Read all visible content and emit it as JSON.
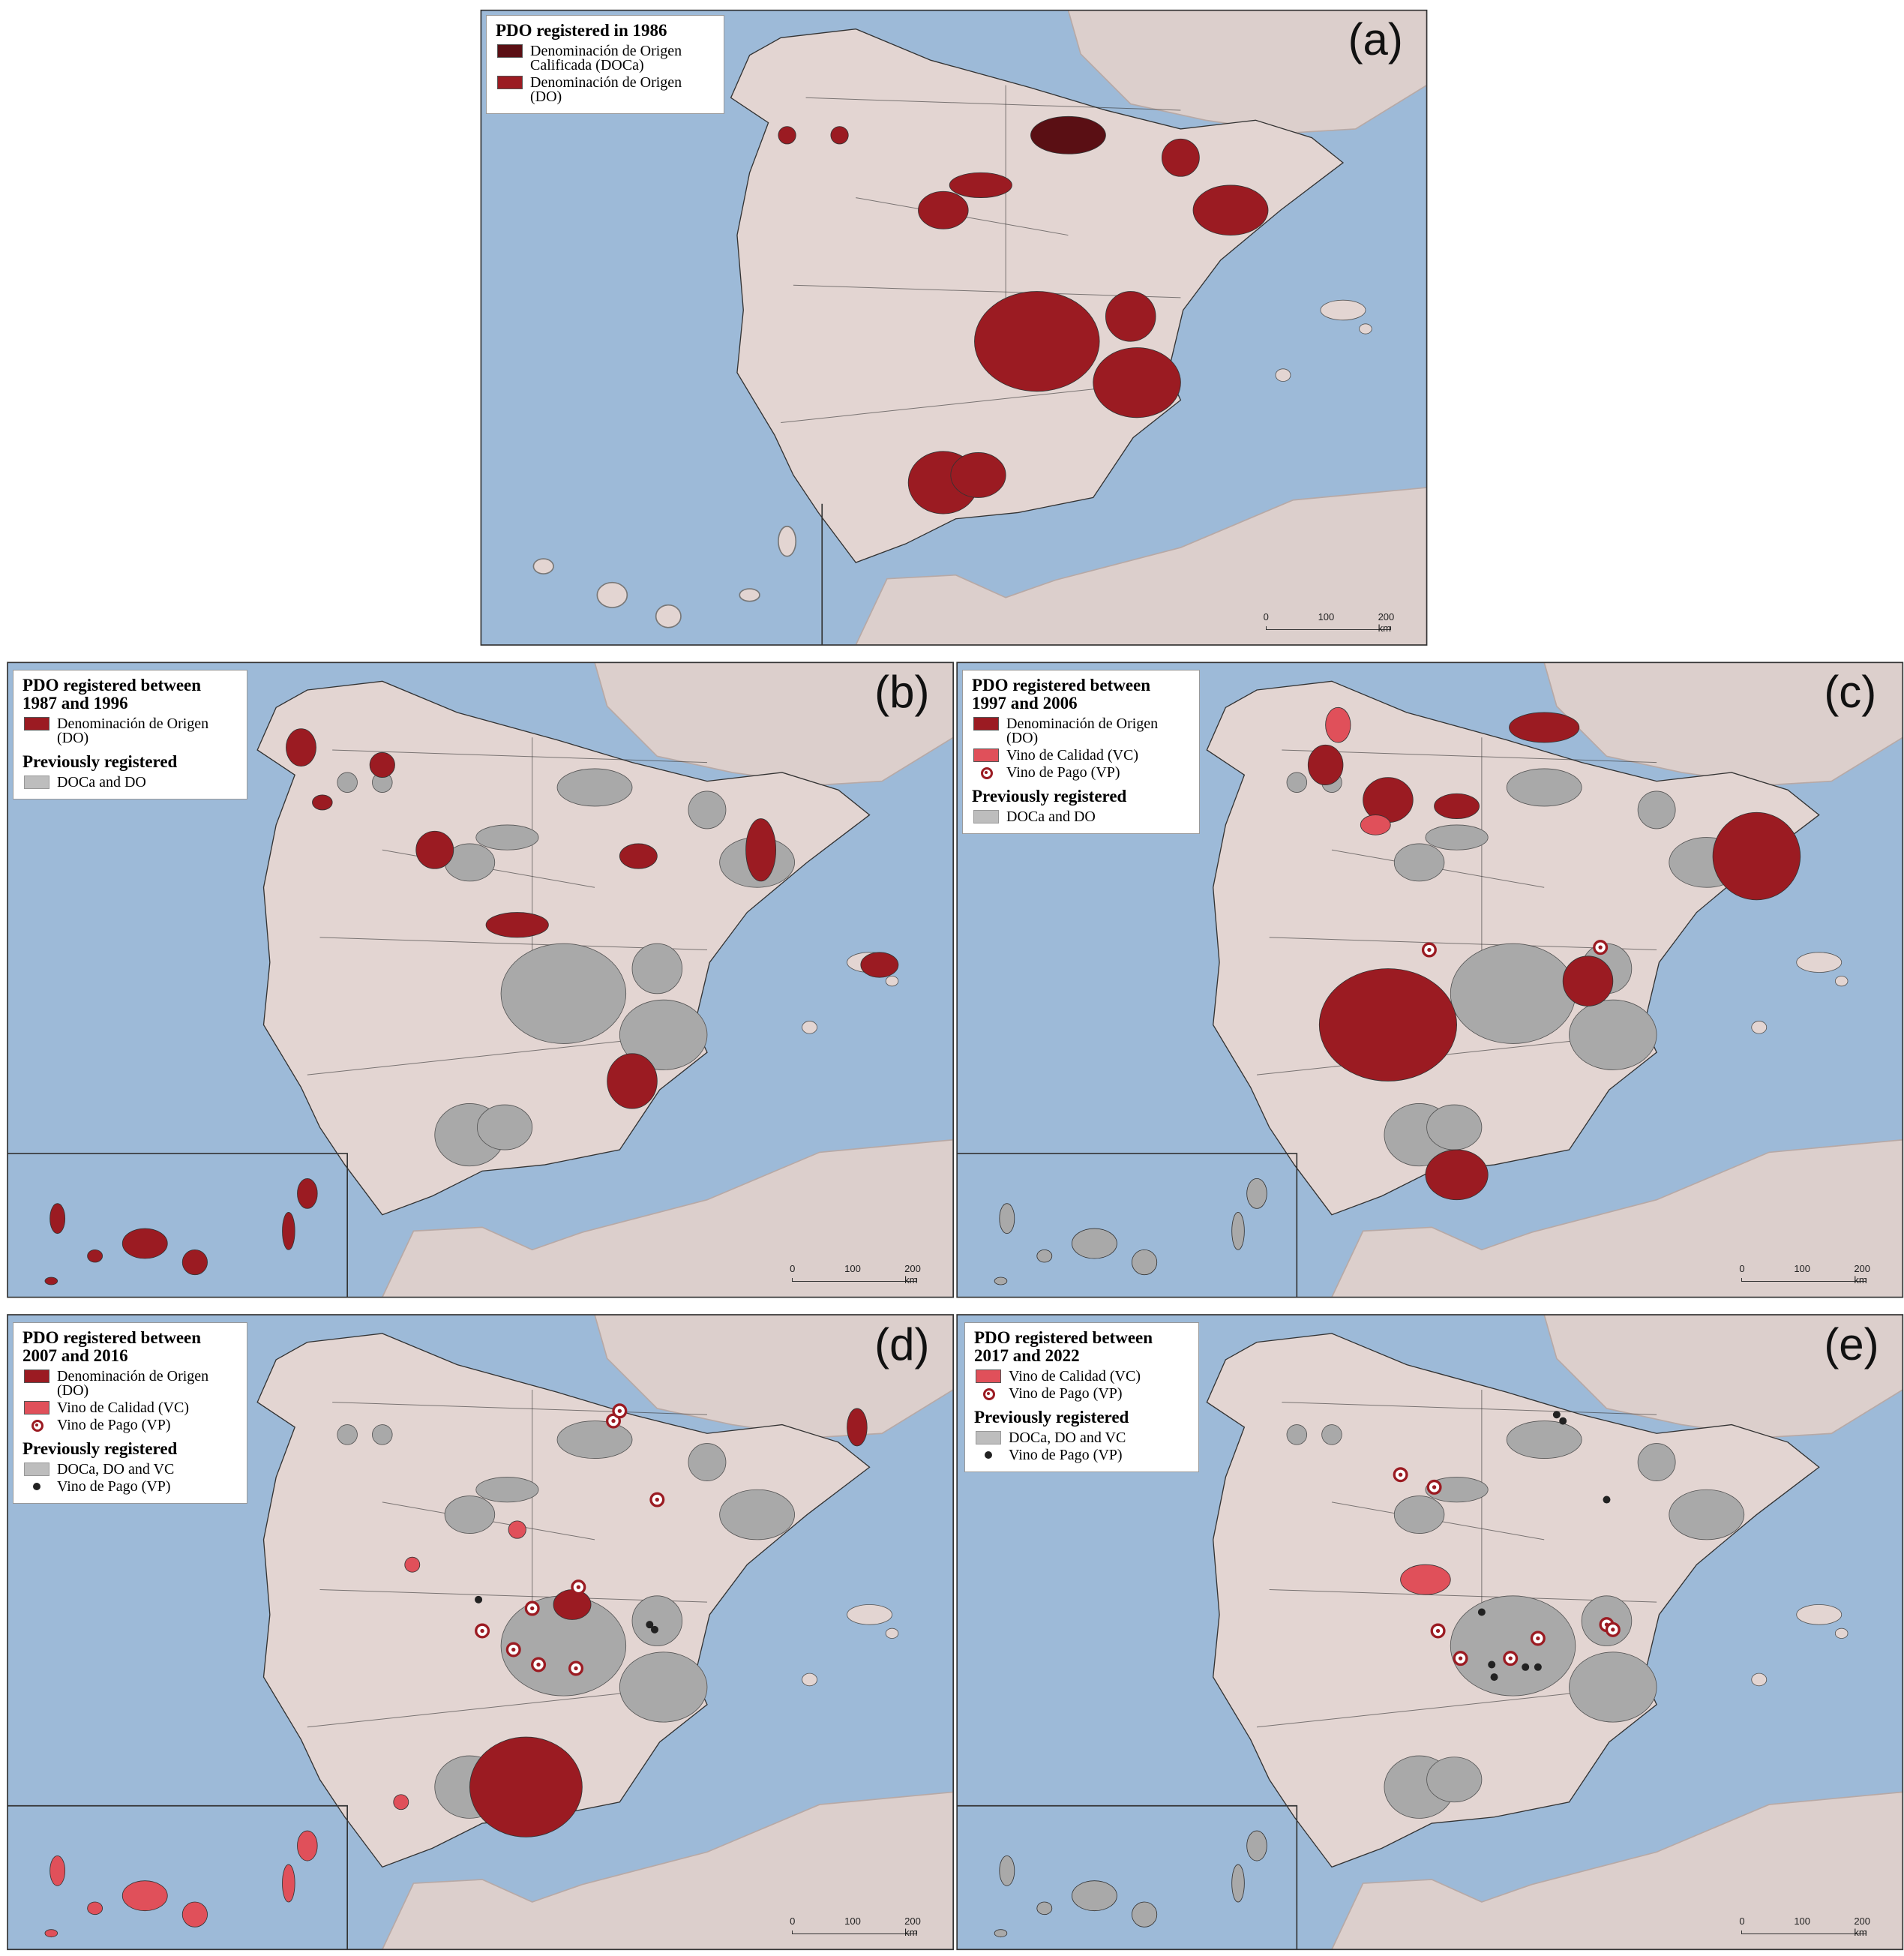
{
  "panels": [
    {
      "label": "(a)",
      "legend": {
        "title": "PDO registered in 1986",
        "items": [
          "Denominación de Origen Calificada (DOCa)",
          "Denominación de Origen (DO)"
        ]
      },
      "scale": [
        "0",
        "100",
        "200 km"
      ]
    },
    {
      "label": "(b)",
      "legend": {
        "title": "PDO registered between 1987 and 1996",
        "items": [
          "Denominación de Origen (DO)"
        ],
        "previous_title": "Previously registered",
        "previous_items": [
          "DOCa and DO"
        ]
      },
      "scale": [
        "0",
        "100",
        "200 km"
      ]
    },
    {
      "label": "(c)",
      "legend": {
        "title": "PDO registered between 1997 and 2006",
        "items": [
          "Denominación de Origen (DO)",
          "Vino de Calidad (VC)",
          "Vino de Pago (VP)"
        ],
        "previous_title": "Previously registered",
        "previous_items": [
          "DOCa and DO"
        ]
      },
      "scale": [
        "0",
        "100",
        "200 km"
      ]
    },
    {
      "label": "(d)",
      "legend": {
        "title": "PDO registered between 2007 and 2016",
        "items": [
          "Denominación de Origen (DO)",
          "Vino de Calidad (VC)",
          "Vino de Pago (VP)"
        ],
        "previous_title": "Previously registered",
        "previous_items": [
          "DOCa, DO and VC",
          "Vino de Pago (VP)"
        ]
      },
      "scale": [
        "0",
        "100",
        "200 km"
      ]
    },
    {
      "label": "(e)",
      "legend": {
        "title": "PDO registered between 2017 and 2022",
        "items": [
          "Vino de Calidad (VC)",
          "Vino de Pago (VP)"
        ],
        "previous_title": "Previously registered",
        "previous_items": [
          "DOCa, DO and VC",
          "Vino de Pago (VP)"
        ]
      },
      "scale": [
        "0",
        "100",
        "200 km"
      ]
    }
  ]
}
